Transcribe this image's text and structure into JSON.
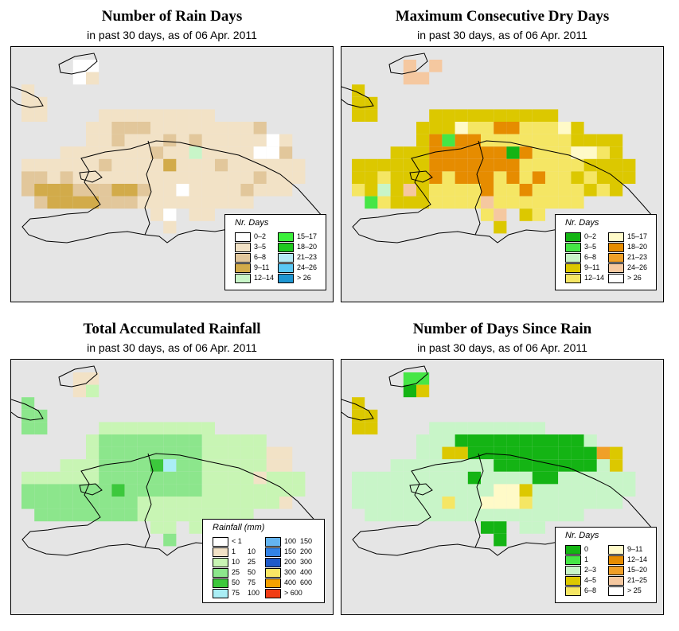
{
  "panels": [
    {
      "id": "rain-days",
      "title": "Number of Rain Days",
      "subtitle": "in past 30 days, as of  06 Apr. 2011",
      "legend": {
        "title": "Nr. Days",
        "items": [
          {
            "label": "0–2",
            "color": "#ffffff"
          },
          {
            "label": "3–5",
            "color": "#f2e2c6"
          },
          {
            "label": "6–8",
            "color": "#e2c79b"
          },
          {
            "label": "9–11",
            "color": "#d2ab4a"
          },
          {
            "label": "12–14",
            "color": "#c8f5c8"
          },
          {
            "label": "15–17",
            "color": "#3cf03c"
          },
          {
            "label": "18–20",
            "color": "#1ec81e"
          },
          {
            "label": "21–23",
            "color": "#b4eaf5"
          },
          {
            "label": "24–26",
            "color": "#5ac8f5"
          },
          {
            "label": "> 26",
            "color": "#1e96d2"
          }
        ]
      }
    },
    {
      "id": "dry-days",
      "title": "Maximum Consecutive Dry Days",
      "subtitle": "in past 30 days, as of  06 Apr. 2011",
      "legend": {
        "title": "Nr. Days",
        "items": [
          {
            "label": "0–2",
            "color": "#14b414"
          },
          {
            "label": "3–5",
            "color": "#46e646"
          },
          {
            "label": "6–8",
            "color": "#c8f5c8"
          },
          {
            "label": "9–11",
            "color": "#dcc800"
          },
          {
            "label": "12–14",
            "color": "#f5e664"
          },
          {
            "label": "15–17",
            "color": "#fffac8"
          },
          {
            "label": "18–20",
            "color": "#e68c00"
          },
          {
            "label": "21–23",
            "color": "#f0a028"
          },
          {
            "label": "24–26",
            "color": "#f5c8a0"
          },
          {
            "label": "> 26",
            "color": "#ffffff"
          }
        ]
      }
    },
    {
      "id": "rainfall",
      "title": "Total Accumulated Rainfall",
      "subtitle": "in past 30 days, as of  06 Apr. 2011",
      "legend": {
        "title": "Rainfall (mm)",
        "items": [
          {
            "lo": "< 1",
            "hi": "",
            "color": "#ffffff"
          },
          {
            "lo": "1",
            "hi": "10",
            "color": "#f2e2c6"
          },
          {
            "lo": "10",
            "hi": "25",
            "color": "#c8f5b4"
          },
          {
            "lo": "25",
            "hi": "50",
            "color": "#8ce68c"
          },
          {
            "lo": "50",
            "hi": "75",
            "color": "#3cc83c"
          },
          {
            "lo": "75",
            "hi": "100",
            "color": "#aaeef5"
          },
          {
            "lo": "100",
            "hi": "150",
            "color": "#64b4f0"
          },
          {
            "lo": "150",
            "hi": "200",
            "color": "#3282e6"
          },
          {
            "lo": "200",
            "hi": "300",
            "color": "#1e5ac8"
          },
          {
            "lo": "300",
            "hi": "400",
            "color": "#fae664"
          },
          {
            "lo": "400",
            "hi": "600",
            "color": "#f5a000"
          },
          {
            "lo": "> 600",
            "hi": "",
            "color": "#f03c14"
          }
        ]
      }
    },
    {
      "id": "days-since-rain",
      "title": "Number of Days Since Rain",
      "subtitle": "in past 30 days, as of  06 Apr. 2011",
      "legend": {
        "title": "Nr. Days",
        "items": [
          {
            "label": "0",
            "color": "#14b414"
          },
          {
            "label": "1",
            "color": "#46e646"
          },
          {
            "label": "2–3",
            "color": "#c8f5c8"
          },
          {
            "label": "4–5",
            "color": "#dcc800"
          },
          {
            "label": "6–8",
            "color": "#f5e664"
          },
          {
            "label": "9–11",
            "color": "#fffac8"
          },
          {
            "label": "12–14",
            "color": "#e68c00"
          },
          {
            "label": "15–20",
            "color": "#f0a028"
          },
          {
            "label": "21–25",
            "color": "#f5c8a0"
          },
          {
            "label": "> 25",
            "color": "#ffffff"
          }
        ]
      }
    }
  ],
  "grids": {
    "rain-days": {
      "codes": [
        "#ffffff",
        "#f2e2c6",
        "#e2c79b",
        "#d2ab4a",
        "#c8f5c8"
      ],
      "rows": [
        "....00..................",
        "....01..................",
        "1.......................",
        "11......................",
        "11....111111111.........",
        ".....11222111111112.....",
        ".....1121112121111101...",
        "...111111121141111002...",
        "1111112111131112111111..",
        "2212111111111111112111..",
        "233322233211011112111...",
        ".23333222111111111......",
        "..........10.11.........",
        "...........1............"
      ]
    },
    "dry-days": {
      "codes": [
        "#14b414",
        "#46e646",
        "#c8f5c8",
        "#dcc800",
        "#f5e664",
        "#fffac8",
        "#e68c00",
        "#f0a028",
        "#f5c8a0",
        "#ffffff"
      ],
      "rows": [
        "....8.8.................",
        "....88..................",
        "3.......................",
        "33......................",
        "33....3333333333........",
        ".....3335446644453......",
        ".....3616644444443333...",
        "...333666666064445543...",
        "3333336666666444443333..",
        "3343336466646464434333..",
        "432383444464464444343...",
        ".14333444484444444......",
        "..........48.34.........",
        "...........3............"
      ]
    },
    "rainfall": {
      "codes": [
        "#ffffff",
        "#f2e2c6",
        "#c8f5b4",
        "#8ce68c",
        "#3cc83c",
        "#aaeef5"
      ],
      "rows": [
        "....11..................",
        "....12..................",
        "3.......................",
        "33......................",
        "33....222222222.........",
        ".....23333333322222.....",
        ".....2333333332222211...",
        "...222333345332222211...",
        "2222223333333322221222..",
        "3333333433333322222222..",
        "333333333222222222221...",
        ".33333333222222222......",
        "..........22.22.........",
        "...........3............"
      ]
    },
    "days-since-rain": {
      "codes": [
        "#14b414",
        "#46e646",
        "#c8f5c8",
        "#dcc800",
        "#f5e664",
        "#fffac8",
        "#e68c00",
        "#f0a028",
        "#f5c8a0",
        "#ffffff"
      ],
      "rows": [
        "....11..................",
        "....03..................",
        "3.......................",
        "33......................",
        "33....222222222.........",
        ".....22200000000002.....",
        ".....2233000000000073...",
        "...222222220000000023...",
        "2222222220222200222222..",
        "2222222222255322222222..",
        "222222242255542222222...",
        ".22222222222222222......",
        "..........00.22.........",
        "...........0............"
      ]
    }
  }
}
